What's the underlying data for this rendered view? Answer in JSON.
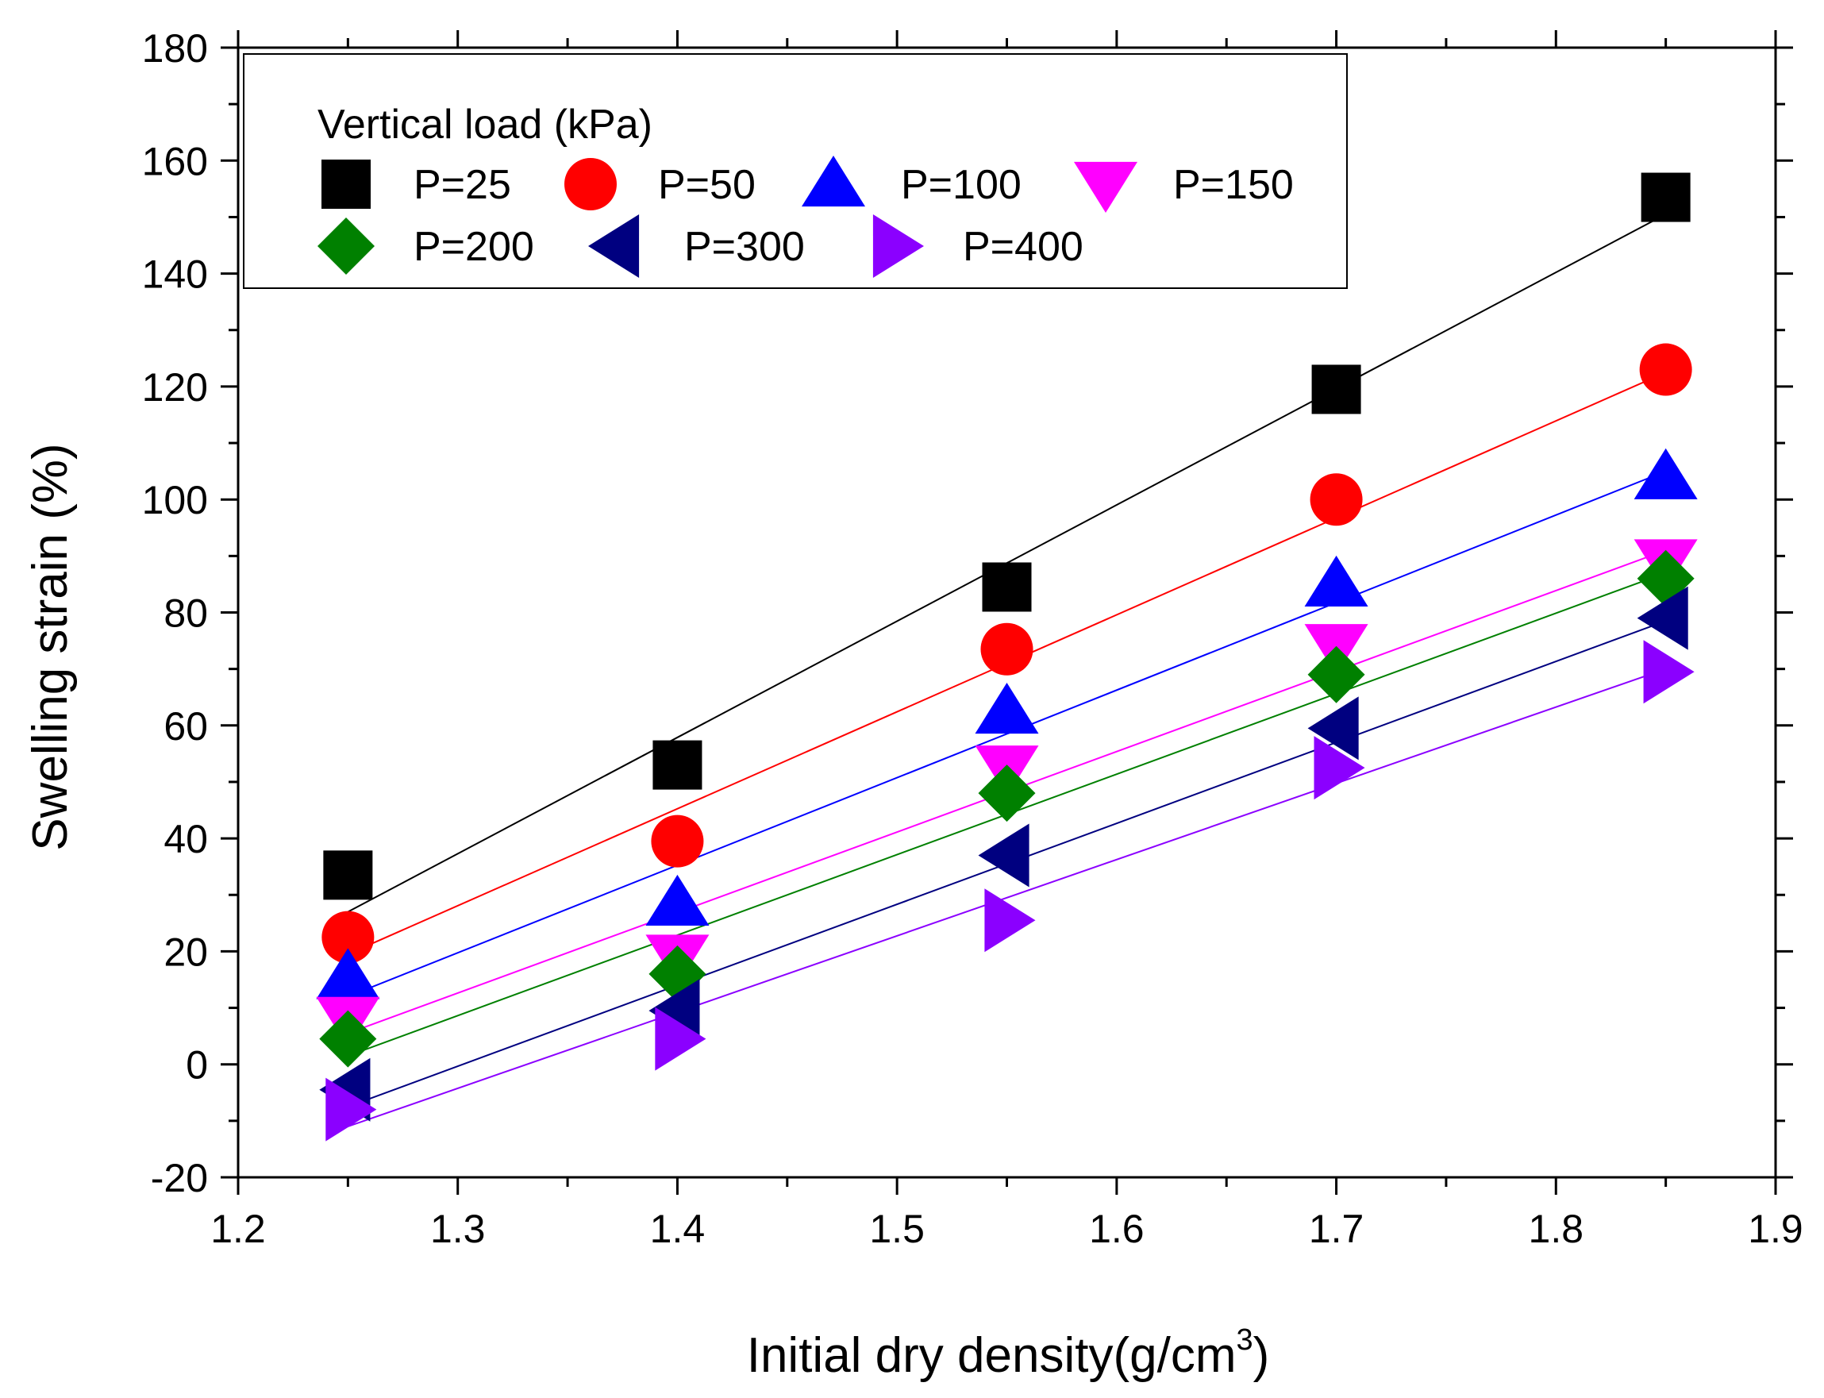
{
  "chart_data": {
    "type": "scatter",
    "title": "",
    "xlabel": "Initial dry density(g/cm",
    "xlabel_superscript": "3",
    "xlabel_suffix": ")",
    "ylabel": "Swelling strain (%)",
    "xlim": [
      1.2,
      1.9
    ],
    "ylim": [
      -20,
      180
    ],
    "x_ticks": [
      "1.2",
      "1.3",
      "1.4",
      "1.5",
      "1.6",
      "1.7",
      "1.8",
      "1.9"
    ],
    "y_ticks": [
      "-20",
      "0",
      "20",
      "40",
      "60",
      "80",
      "100",
      "120",
      "140",
      "160",
      "180"
    ],
    "legend": {
      "title": "Vertical load (kPa)",
      "position": "top-left"
    },
    "x": [
      1.25,
      1.4,
      1.55,
      1.7,
      1.85
    ],
    "series": [
      {
        "name": "P=25",
        "color": "#000000",
        "marker": "square",
        "values": [
          33.5,
          53,
          84.5,
          119.5,
          153.5
        ],
        "fit": [
          27,
          150.5
        ]
      },
      {
        "name": "P=50",
        "color": "#ff0000",
        "marker": "circle",
        "values": [
          22.5,
          39.5,
          73.5,
          100,
          123
        ],
        "fit": [
          19.5,
          122.5
        ]
      },
      {
        "name": "P=100",
        "color": "#0000ff",
        "marker": "triangle-up",
        "values": [
          15.5,
          28.5,
          62.5,
          85,
          104
        ],
        "fit": [
          12,
          105
        ]
      },
      {
        "name": "P=150",
        "color": "#ff00ff",
        "marker": "triangle-down",
        "values": [
          8,
          19,
          52.5,
          74,
          89
        ],
        "fit": [
          5.5,
          91
        ]
      },
      {
        "name": "P=200",
        "color": "#008000",
        "marker": "diamond",
        "values": [
          4.5,
          16,
          48,
          69,
          86
        ],
        "fit": [
          1.5,
          87
        ]
      },
      {
        "name": "P=300",
        "color": "#000080",
        "marker": "triangle-left",
        "values": [
          -4.5,
          9.5,
          37,
          59.5,
          79
        ],
        "fit": [
          -7.5,
          78.5
        ]
      },
      {
        "name": "P=400",
        "color": "#8b00ff",
        "marker": "triangle-right",
        "values": [
          -8,
          4.5,
          25.5,
          52.5,
          69.5
        ],
        "fit": [
          -11,
          70
        ]
      }
    ]
  }
}
